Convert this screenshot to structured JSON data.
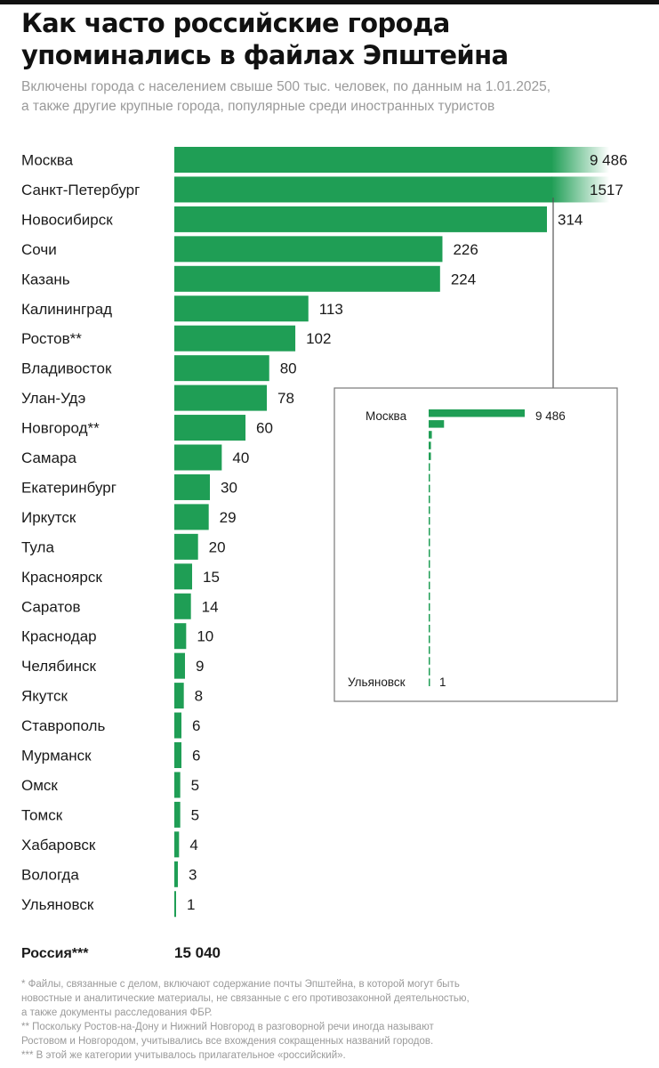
{
  "header": {
    "title_line1": "Как часто российские города",
    "title_line2": "упоминались в файлах Эпштейна",
    "subtitle_line1": "Включены города с населением свыше 500 тыс. человек, по данным на 1.01.2025,",
    "subtitle_line2": "а также другие крупные города, популярные среди иностранных туристов"
  },
  "chart_data": {
    "type": "bar",
    "orientation": "horizontal",
    "categories": [
      "Москва",
      "Санкт-Петербург",
      "Новосибирск",
      "Сочи",
      "Казань",
      "Калининград",
      "Ростов**",
      "Владивосток",
      "Улан-Удэ",
      "Новгород**",
      "Самара",
      "Екатеринбург",
      "Иркутск",
      "Тула",
      "Красноярск",
      "Саратов",
      "Краснодар",
      "Челябинск",
      "Якутск",
      "Ставрополь",
      "Мурманск",
      "Омск",
      "Томск",
      "Хабаровск",
      "Вологда",
      "Ульяновск"
    ],
    "values": [
      9486,
      1517,
      314,
      226,
      224,
      113,
      102,
      80,
      78,
      60,
      40,
      30,
      29,
      20,
      15,
      14,
      10,
      9,
      8,
      6,
      6,
      5,
      5,
      4,
      3,
      1
    ],
    "value_labels": [
      "9 486",
      "1517",
      "314",
      "226",
      "224",
      "113",
      "102",
      "80",
      "78",
      "60",
      "40",
      "30",
      "29",
      "20",
      "15",
      "14",
      "10",
      "9",
      "8",
      "6",
      "6",
      "5",
      "5",
      "4",
      "3",
      "1"
    ],
    "axis_break": true,
    "bar_color": "#1f9e55",
    "total": {
      "label": "Россия***",
      "value": 15040,
      "value_label": "15 040"
    },
    "inset": {
      "type": "bar",
      "scale": "true",
      "top_label": "Москва",
      "top_value_label": "9 486",
      "bottom_label": "Ульяновск",
      "bottom_value_label": "1"
    }
  },
  "footnotes": [
    "* Файлы, связанные с делом, включают содержание почты Эпштейна, в которой могут быть",
    "новостные и аналитические материалы, не связанные с его противозаконной деятельностью,",
    "а также документы расследования ФБР.",
    "** Поскольку Ростов-на-Дону и Нижний Новгород в разговорной речи иногда называют",
    "Ростовом и Новгородом, учитывались все вхождения сокращенных названий городов.",
    "*** В этой же категории учитывалось прилагательное «российский»."
  ]
}
